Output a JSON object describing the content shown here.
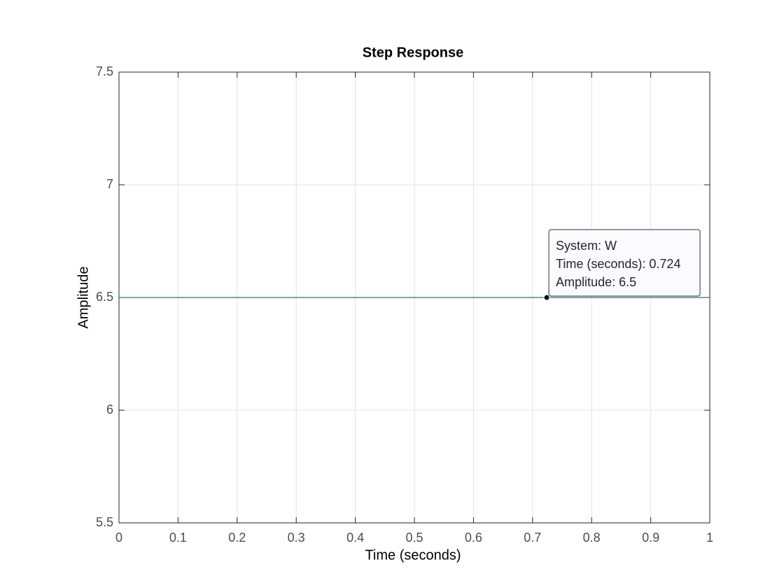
{
  "chart_data": {
    "type": "line",
    "title": "Step Response",
    "x_label": "Time (seconds)",
    "y_label": "Amplitude",
    "x": [
      0,
      1
    ],
    "values": [
      6.5,
      6.5
    ],
    "color": "#22777d",
    "xlim": [
      0,
      1
    ],
    "xticks": [
      0,
      0.1,
      0.2,
      0.3,
      0.4,
      0.5,
      0.6,
      0.7,
      0.8,
      0.9,
      1
    ],
    "ylim": [
      5.5,
      7.5
    ],
    "yticks": [
      5.5,
      6,
      6.5,
      7,
      7.5
    ],
    "grid": true,
    "annotation": {
      "x": 0.724,
      "y": 6.5,
      "lines": [
        "System: W",
        "Time (seconds): 0.724",
        "Amplitude: 6.5"
      ]
    }
  }
}
